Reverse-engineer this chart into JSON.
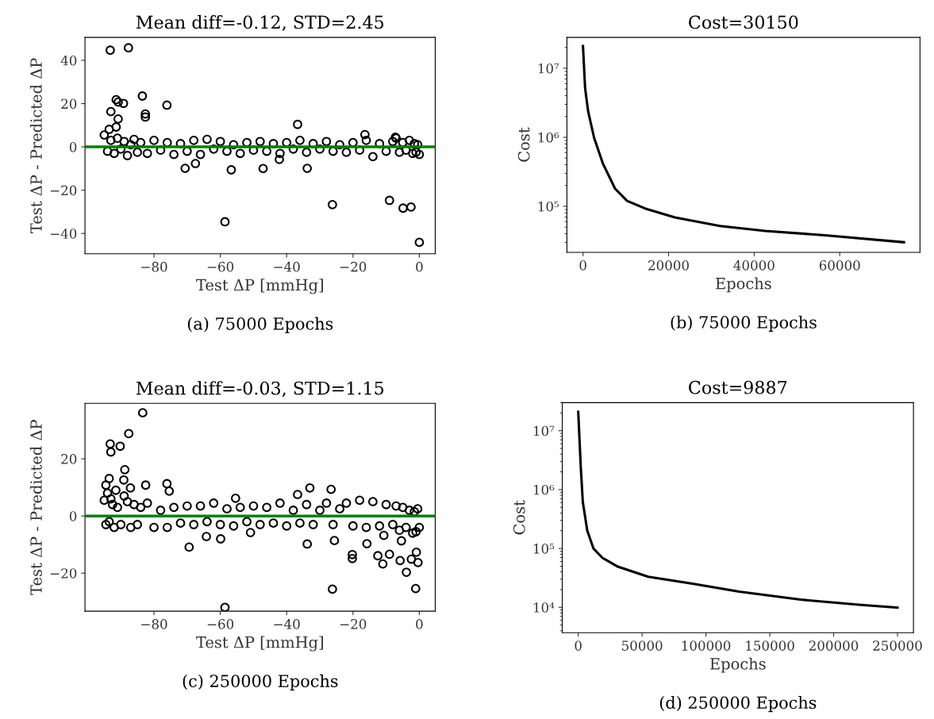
{
  "chart_data": [
    {
      "type": "scatter",
      "title": "Mean diff=-0.12, STD=2.45",
      "xlabel": "Test ΔP [mmHg]",
      "ylabel": "Test ΔP - Predicted ΔP",
      "annotations": [
        "(a) 75000 Epochs"
      ],
      "marker": "circle",
      "grid": false,
      "legend": false,
      "xlim": [
        -100.8,
        4.8
      ],
      "ylim": [
        -49.4,
        50.6
      ],
      "xticks": [
        {
          "value": -80,
          "label": "−80"
        },
        {
          "value": -60,
          "label": "−60"
        },
        {
          "value": -40,
          "label": "−40"
        },
        {
          "value": -20,
          "label": "−20"
        },
        0
      ],
      "yticks": [
        {
          "value": -40,
          "label": "−40"
        },
        {
          "value": -20,
          "label": "−20"
        },
        0,
        20,
        40
      ],
      "ref_lines": [
        {
          "axis": "y",
          "value": 0,
          "color": "#008000"
        }
      ],
      "series": [
        {
          "color": "#000000",
          "x": [
            -93.2,
            -87.7,
            -83.5,
            -76.1,
            -91.4,
            -90.8,
            -89.2,
            -93.0,
            -90.8,
            -91.4,
            -93.5,
            -82.6,
            -82.6,
            -36.7,
            -16.4,
            -7.2,
            -70.6,
            -67.5,
            -56.7,
            -47.1,
            -42.2,
            -33.8,
            -58.6,
            -26.2,
            -9.0,
            -4.9,
            -2.5,
            0.0
          ],
          "values": [
            44.7,
            45.8,
            23.5,
            19.3,
            21.8,
            20.7,
            20.1,
            16.3,
            12.9,
            9.2,
            8.1,
            15.2,
            13.8,
            10.4,
            5.7,
            4.5,
            -9.9,
            -7.7,
            -10.6,
            -10.0,
            -5.8,
            -9.9,
            -34.6,
            -26.7,
            -24.7,
            -28.3,
            -27.8,
            -44.1
          ]
        },
        {
          "color": "#000000",
          "x": [
            -95,
            -94,
            -93,
            -92,
            -91,
            -90,
            -89,
            -88,
            -87,
            -86,
            -85,
            -84,
            -82,
            -80,
            -78,
            -76,
            -74,
            -72,
            -70,
            -68,
            -66,
            -64,
            -62,
            -60,
            -58,
            -56,
            -54,
            -52,
            -50,
            -48,
            -46,
            -44,
            -42,
            -40,
            -38,
            -36,
            -34,
            -32,
            -30,
            -28,
            -26,
            -24,
            -22,
            -20,
            -18,
            -16,
            -14,
            -12,
            -10,
            -8,
            -7,
            -6,
            -5,
            -4,
            -3,
            -2,
            -1.5,
            -1,
            -0.5,
            0
          ],
          "values": [
            5.5,
            -2,
            3,
            -3,
            4,
            -1,
            2.5,
            -4,
            1,
            3.5,
            -2.5,
            2,
            -3,
            3,
            -1.5,
            2,
            -3.5,
            1.5,
            -2,
            3,
            -3.5,
            3.5,
            -1,
            2.5,
            -2,
            1,
            -3,
            2,
            -1.5,
            2.5,
            -2,
            1.5,
            -3,
            2,
            -1,
            3,
            -2.5,
            1.5,
            -1,
            2.5,
            -2,
            1,
            -2.5,
            2,
            -1.5,
            3,
            -4.5,
            1.5,
            -2,
            2.5,
            4,
            -2.5,
            2,
            -1.5,
            3,
            -3,
            1.5,
            -2.5,
            1,
            -3.5
          ]
        }
      ]
    },
    {
      "type": "line",
      "title": "Cost=30150",
      "xlabel": "Epochs",
      "ylabel": "Cost",
      "annotations": [
        "(b) 75000 Epochs"
      ],
      "log": "y",
      "grid": false,
      "legend": false,
      "line_style": "solid",
      "marker": "none",
      "xlim": [
        -3750,
        78750
      ],
      "ylim": [
        21500,
        28000000
      ],
      "xticks": [
        0,
        20000,
        40000,
        60000
      ],
      "yticks": [
        {
          "value": 100000,
          "label": "10⁵"
        },
        {
          "value": 1000000,
          "label": "10⁶"
        },
        {
          "value": 10000000,
          "label": "10⁷"
        }
      ],
      "series": [
        {
          "color": "#000000",
          "x": [
            0,
            490,
            1190,
            2600,
            4700,
            7500,
            10300,
            14500,
            21500,
            32000,
            42600,
            56600,
            75000
          ],
          "values": [
            21000000,
            5200000,
            2400000,
            980000,
            410000,
            180000,
            120000,
            93000,
            69000,
            52000,
            44000,
            38000,
            30150
          ]
        }
      ]
    },
    {
      "type": "scatter",
      "title": "Mean diff=-0.03, STD=1.15",
      "xlabel": "Test ΔP [mmHg]",
      "ylabel": "Test ΔP - Predicted ΔP",
      "annotations": [
        "(c) 250000 Epochs"
      ],
      "marker": "circle",
      "grid": false,
      "legend": false,
      "xlim": [
        -100.8,
        4.8
      ],
      "ylim": [
        -33.3,
        39.4
      ],
      "xticks": [
        {
          "value": -80,
          "label": "−80"
        },
        {
          "value": -60,
          "label": "−60"
        },
        {
          "value": -40,
          "label": "−40"
        },
        {
          "value": -20,
          "label": "−20"
        },
        0
      ],
      "yticks": [
        {
          "value": -20,
          "label": "−20"
        },
        0,
        20
      ],
      "ref_lines": [
        {
          "axis": "y",
          "value": 0,
          "color": "#008000"
        }
      ],
      "series": [
        {
          "color": "#000000",
          "x": [
            -83.4,
            -87.6,
            -93.2,
            -93.0,
            -90.2,
            -88.8,
            -93.5,
            -94.5,
            -89.1,
            -87.1,
            -82.5,
            -76.1,
            -75.4,
            -55.4,
            -36.7,
            -33.0,
            -26.6,
            -69.4,
            -64.2,
            -59.9,
            -50.9,
            -33.8,
            -25.6,
            -58.6,
            -26.2,
            -20.2,
            -20.2,
            -15.8,
            -12.5,
            -11.0,
            -9.0,
            -5.8,
            -3.9,
            -2.4,
            -0.9,
            -0.4,
            -1.1,
            -5.4,
            -10.7
          ],
          "values": [
            36.1,
            28.8,
            25.2,
            22.4,
            24.4,
            16.2,
            13.1,
            10.8,
            12.6,
            9.8,
            10.8,
            11.3,
            8.7,
            6.2,
            7.5,
            9.8,
            9.3,
            -10.9,
            -7.2,
            -8.0,
            -5.8,
            -9.8,
            -8.6,
            -32.0,
            -25.6,
            -13.5,
            -14.9,
            -9.7,
            -13.9,
            -16.8,
            -13.4,
            -15.6,
            -19.7,
            -15.1,
            -12.7,
            -16.3,
            -25.4,
            -8.7,
            -6.8
          ]
        },
        {
          "color": "#000000",
          "x": [
            -95,
            -94.5,
            -94,
            -93.5,
            -93,
            -92.5,
            -92,
            -91.5,
            -91,
            -90,
            -89,
            -88,
            -87,
            -86,
            -85,
            -84,
            -82,
            -80,
            -78,
            -76,
            -74,
            -72,
            -70,
            -68,
            -66,
            -64,
            -62,
            -60,
            -58,
            -56,
            -54,
            -52,
            -50,
            -48,
            -46,
            -44,
            -42,
            -40,
            -38,
            -36,
            -34,
            -32,
            -30,
            -28,
            -26,
            -24,
            -22,
            -20,
            -18,
            -16,
            -14,
            -12,
            -10,
            -8,
            -7,
            -6,
            -5,
            -4,
            -3,
            -2,
            -1.5,
            -1,
            -0.5,
            0
          ],
          "values": [
            5.5,
            -3,
            8,
            -2,
            6,
            4,
            -4,
            9,
            3,
            -3,
            7,
            5,
            -4,
            4,
            -3,
            3,
            4.5,
            -4,
            2,
            -4,
            3,
            -2.5,
            3.5,
            -3,
            3.5,
            -2,
            4.5,
            -3,
            2.5,
            -3.5,
            3,
            -2,
            3.5,
            -3,
            3,
            -2.5,
            4.5,
            -3.5,
            2,
            -2.5,
            4,
            -3,
            2,
            4.5,
            -3,
            2.5,
            4.5,
            -3.5,
            5.5,
            -4,
            5,
            -3.5,
            4,
            -3,
            3.5,
            -5,
            3,
            -4,
            2,
            -6,
            1.5,
            -5.5,
            2.5,
            -4
          ]
        }
      ]
    },
    {
      "type": "line",
      "title": "Cost=9887",
      "xlabel": "Epochs",
      "ylabel": "Cost",
      "annotations": [
        "(d) 250000 Epochs"
      ],
      "log": "y",
      "grid": false,
      "legend": false,
      "line_style": "solid",
      "marker": "none",
      "xlim": [
        -12500,
        262500
      ],
      "ylim": [
        3700,
        30000000
      ],
      "xticks": [
        0,
        50000,
        100000,
        150000,
        200000,
        250000
      ],
      "yticks": [
        {
          "value": 10000,
          "label": "10⁴"
        },
        {
          "value": 100000,
          "label": "10⁵"
        },
        {
          "value": 1000000,
          "label": "10⁶"
        },
        {
          "value": 10000000,
          "label": "10⁷"
        }
      ],
      "series": [
        {
          "color": "#000000",
          "x": [
            0,
            2000,
            3600,
            7100,
            11900,
            19000,
            31000,
            54800,
            90500,
            126000,
            174000,
            221600,
            250000
          ],
          "values": [
            21000000,
            2400000,
            610000,
            200000,
            100000,
            69000,
            49000,
            33000,
            25000,
            18500,
            13500,
            11000,
            9887
          ]
        }
      ]
    }
  ]
}
